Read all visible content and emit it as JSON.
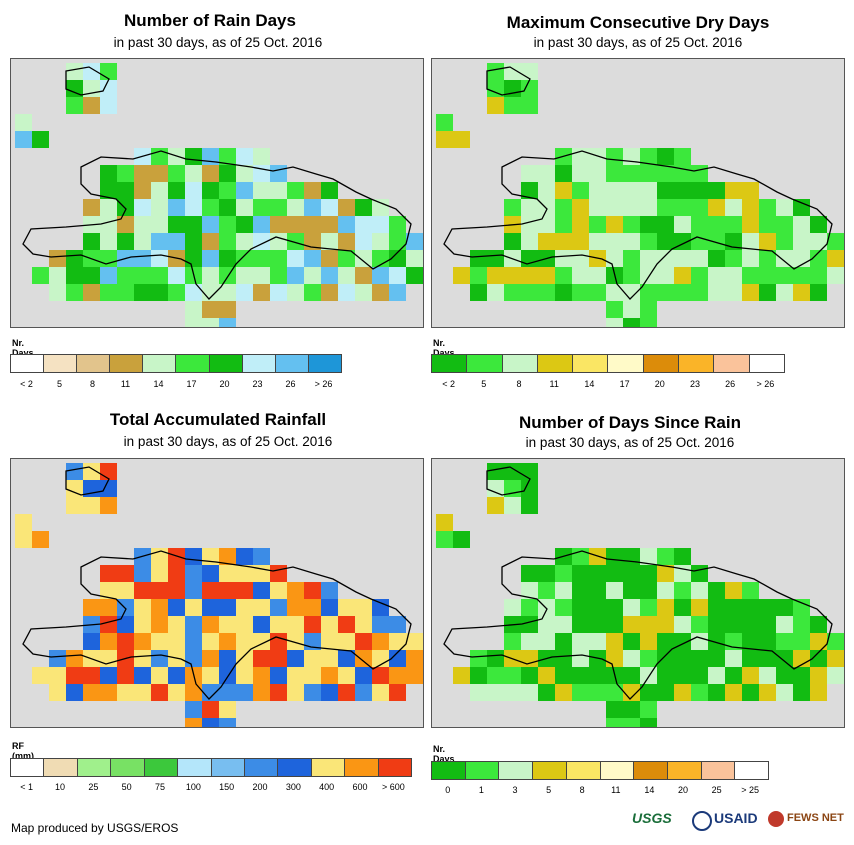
{
  "panels": [
    {
      "title": "Number of Rain Days",
      "subtitle": "in past 30 days, as of 25 Oct. 2016",
      "legend_title": "Nr. Days",
      "legend_labels": [
        "< 2",
        "5",
        "8",
        "11",
        "14",
        "17",
        "20",
        "23",
        "26",
        "> 26"
      ],
      "legend_colors": [
        "#ffffff",
        "#f5e2c2",
        "#e2c48c",
        "#c9a13c",
        "#c8f5c8",
        "#3ce83c",
        "#12bc12",
        "#c0eef8",
        "#64c0f0",
        "#1e96d8"
      ]
    },
    {
      "title": "Maximum Consecutive Dry Days",
      "subtitle": "in past 30 days, as of 25 Oct. 2016",
      "legend_title": "Nr. Days",
      "legend_labels": [
        "< 2",
        "5",
        "8",
        "11",
        "14",
        "17",
        "20",
        "23",
        "26",
        "> 26"
      ],
      "legend_colors": [
        "#12bc12",
        "#3ce83c",
        "#c8f5c8",
        "#dcc814",
        "#fae664",
        "#fffac8",
        "#dc8c0a",
        "#fab428",
        "#fac39b",
        "#ffffff"
      ]
    },
    {
      "title": "Total Accumulated Rainfall",
      "subtitle": "in past 30 days, as of 25 Oct. 2016",
      "legend_title": "RF (mm)",
      "legend_labels": [
        "< 1",
        "10",
        "25",
        "50",
        "75",
        "100",
        "150",
        "200",
        "300",
        "400",
        "600",
        "> 600"
      ],
      "legend_colors": [
        "#ffffff",
        "#f0dcb4",
        "#a0f08c",
        "#78e164",
        "#3cc83c",
        "#b4e6fa",
        "#78bef0",
        "#3c8ce6",
        "#1e64dc",
        "#fae678",
        "#fa9614",
        "#f03c14"
      ]
    },
    {
      "title": "Number of Days Since Rain",
      "subtitle": "in past 30 days, as of 25 Oct. 2016",
      "legend_title": "Nr. Days",
      "legend_labels": [
        "0",
        "1",
        "3",
        "5",
        "8",
        "11",
        "14",
        "20",
        "25",
        "> 25"
      ],
      "legend_colors": [
        "#12bc12",
        "#3ce83c",
        "#c8f5c8",
        "#dcc814",
        "#fae664",
        "#fffac8",
        "#dc8c0a",
        "#fab428",
        "#fac39b",
        "#ffffff"
      ]
    }
  ],
  "credit": "Map produced by USGS/EROS",
  "logos": {
    "usgs": "USGS",
    "usaid": "USAID",
    "fewsnet": "FEWS NET"
  }
}
